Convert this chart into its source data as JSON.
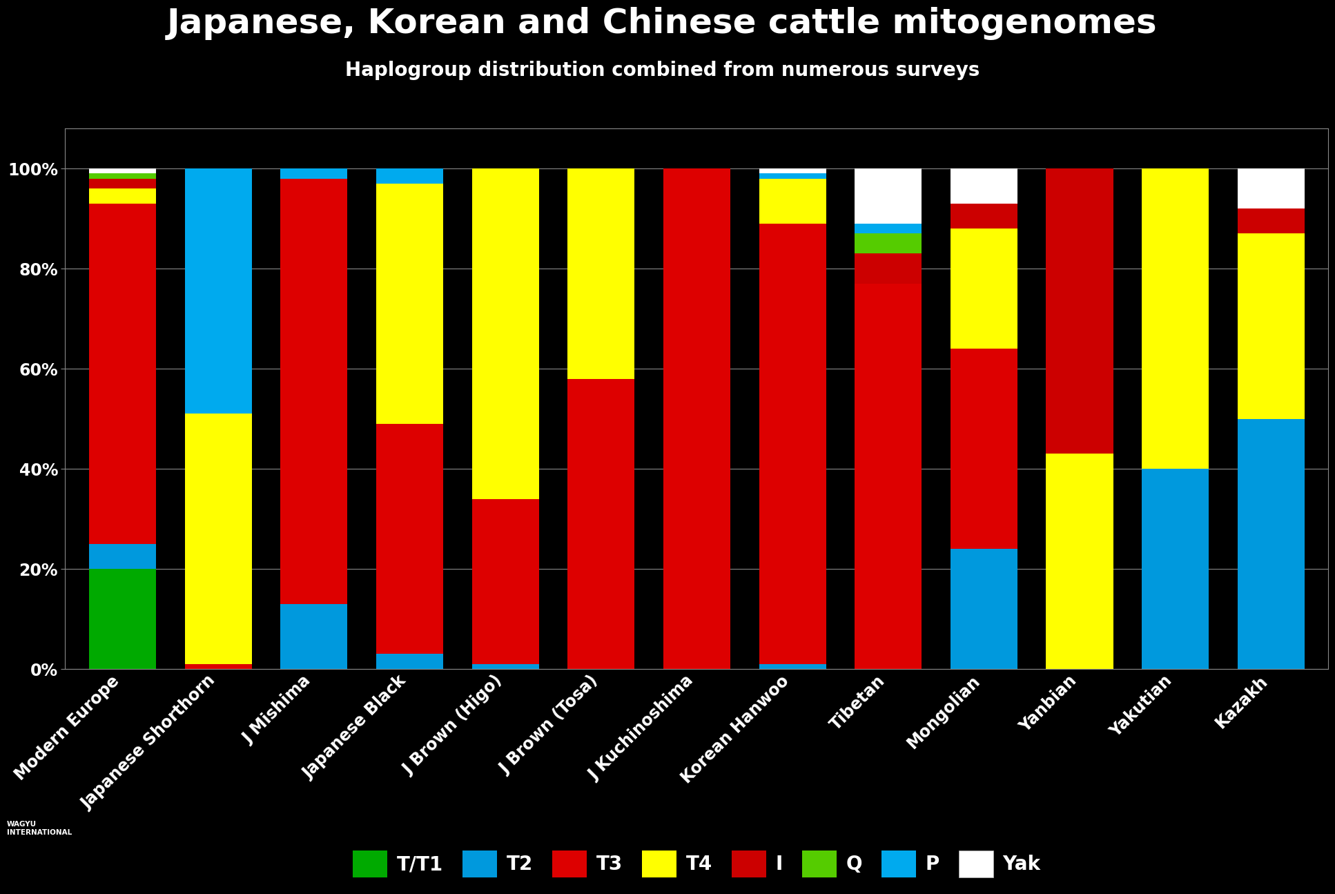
{
  "title": "Japanese, Korean and Chinese cattle mitogenomes",
  "subtitle": "Haplogroup distribution combined from numerous surveys",
  "categories": [
    "Modern Europe",
    "Japanese Shorthorn",
    "J Mishima",
    "Japanese Black",
    "J Brown (Higo)",
    "J Brown (Tosa)",
    "J Kuchinoshima",
    "Korean Hanwoo",
    "Tibetan",
    "Mongolian",
    "Yanbian",
    "Yakutian",
    "Kazakh"
  ],
  "haplogroups": [
    "T/T1",
    "T2",
    "T3",
    "T4",
    "I",
    "Q",
    "P",
    "Yak"
  ],
  "colors": {
    "T/T1": "#00aa00",
    "T2": "#0099dd",
    "T3": "#dd0000",
    "T4": "#ffff00",
    "I": "#cc0000",
    "Q": "#55cc00",
    "P": "#00aaee",
    "Yak": "#ffffff"
  },
  "data": {
    "T/T1": [
      20,
      0,
      0,
      0,
      0,
      0,
      0,
      0,
      0,
      0,
      0,
      0,
      0
    ],
    "T2": [
      5,
      0,
      13,
      3,
      1,
      0,
      0,
      1,
      0,
      24,
      0,
      40,
      50
    ],
    "T3": [
      68,
      1,
      85,
      46,
      33,
      58,
      100,
      88,
      77,
      40,
      0,
      0,
      0
    ],
    "T4": [
      3,
      50,
      0,
      48,
      66,
      42,
      0,
      9,
      0,
      24,
      43,
      60,
      37
    ],
    "I": [
      2,
      0,
      0,
      0,
      0,
      0,
      0,
      0,
      6,
      5,
      57,
      0,
      5
    ],
    "Q": [
      1,
      0,
      0,
      0,
      0,
      0,
      0,
      0,
      4,
      0,
      0,
      0,
      0
    ],
    "P": [
      0,
      49,
      2,
      3,
      0,
      0,
      0,
      1,
      2,
      0,
      0,
      0,
      0
    ],
    "Yak": [
      1,
      0,
      0,
      0,
      0,
      0,
      0,
      1,
      11,
      7,
      0,
      0,
      8
    ]
  },
  "title_fontsize": 36,
  "subtitle_fontsize": 20,
  "tick_fontsize": 17,
  "legend_fontsize": 20,
  "background_color": "#000000",
  "text_color": "#ffffff",
  "grid_color": "#888888"
}
